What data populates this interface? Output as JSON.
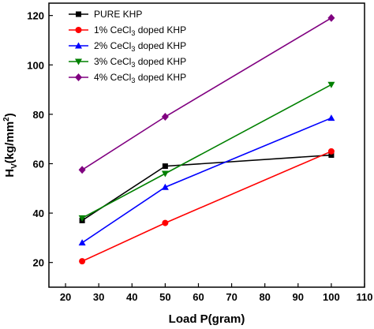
{
  "chart_data": {
    "type": "line",
    "xlabel": "Load P(gram)",
    "ylabel_main": "H",
    "ylabel_sub": "V",
    "ylabel_rest": "(kg/mm",
    "ylabel_sup": "2",
    "ylabel_end": ")",
    "xlim": [
      15,
      110
    ],
    "ylim": [
      10,
      125
    ],
    "x_ticks": [
      20,
      30,
      40,
      50,
      60,
      70,
      80,
      90,
      100,
      110
    ],
    "y_ticks": [
      20,
      40,
      60,
      80,
      100,
      120
    ],
    "grid": false,
    "legend_position": "top-left",
    "x": [
      25,
      50,
      100
    ],
    "series": [
      {
        "name": "PURE KHP",
        "label_parts": [
          "PURE KHP"
        ],
        "color": "#000000",
        "marker": "square",
        "values": [
          37,
          59,
          63.5
        ]
      },
      {
        "name": "1% CeCl3 doped KHP",
        "label_parts": [
          "1% CeCl",
          "3",
          " doped KHP"
        ],
        "color": "#ff0000",
        "marker": "circle",
        "values": [
          20.5,
          36,
          65
        ]
      },
      {
        "name": "2% CeCl3 doped KHP",
        "label_parts": [
          "2% CeCl",
          "3",
          " doped KHP"
        ],
        "color": "#0000ff",
        "marker": "triangle-up",
        "values": [
          28,
          50.5,
          78.5
        ]
      },
      {
        "name": "3% CeCl3 doped KHP",
        "label_parts": [
          " 3% CeCl",
          "3",
          " doped KHP"
        ],
        "color": "#008000",
        "marker": "triangle-down",
        "values": [
          38,
          56,
          92
        ]
      },
      {
        "name": "4% CeCl3 doped KHP",
        "label_parts": [
          "4% CeCl",
          "3",
          " doped KHP"
        ],
        "color": "#800080",
        "marker": "diamond",
        "values": [
          57.5,
          79,
          119
        ]
      }
    ]
  }
}
